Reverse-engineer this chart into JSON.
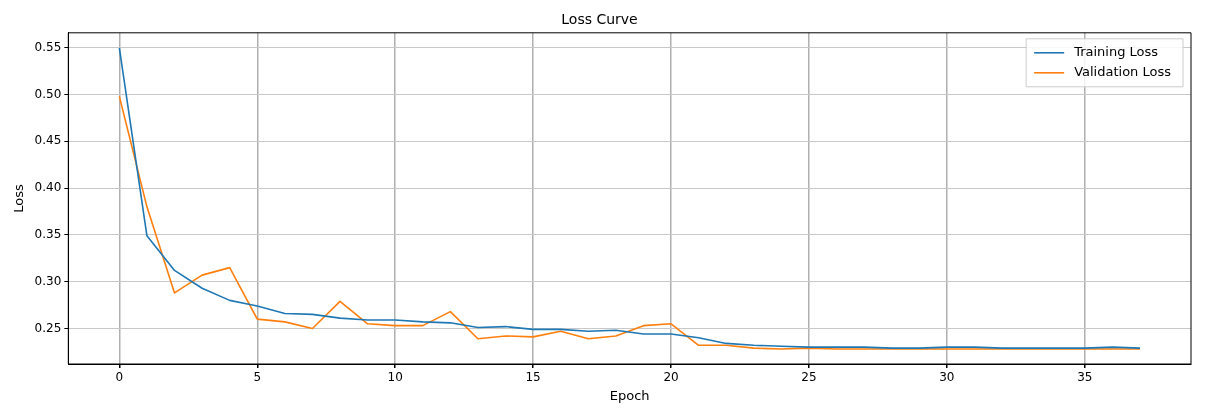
{
  "chart_data": {
    "type": "line",
    "title": "Loss Curve",
    "xlabel": "Epoch",
    "ylabel": "Loss",
    "x": [
      0,
      1,
      2,
      3,
      4,
      5,
      6,
      7,
      8,
      9,
      10,
      11,
      12,
      13,
      14,
      15,
      16,
      17,
      18,
      19,
      20,
      21,
      22,
      23,
      24,
      25,
      26,
      27,
      28,
      29,
      30,
      31,
      32,
      33,
      34,
      35,
      36,
      37
    ],
    "series": [
      {
        "name": "Training Loss",
        "color": "#1f77b4",
        "values": [
          0.55,
          0.349,
          0.312,
          0.293,
          0.28,
          0.274,
          0.266,
          0.265,
          0.261,
          0.259,
          0.259,
          0.257,
          0.256,
          0.251,
          0.252,
          0.249,
          0.249,
          0.247,
          0.248,
          0.244,
          0.244,
          0.24,
          0.234,
          0.232,
          0.231,
          0.23,
          0.23,
          0.23,
          0.229,
          0.229,
          0.23,
          0.23,
          0.229,
          0.229,
          0.229,
          0.229,
          0.23,
          0.229
        ]
      },
      {
        "name": "Validation Loss",
        "color": "#ff7f0e",
        "values": [
          0.498,
          0.38,
          0.288,
          0.307,
          0.315,
          0.26,
          0.257,
          0.25,
          0.279,
          0.255,
          0.253,
          0.253,
          0.268,
          0.239,
          0.242,
          0.241,
          0.247,
          0.239,
          0.242,
          0.253,
          0.255,
          0.232,
          0.232,
          0.229,
          0.228,
          0.229,
          0.228,
          0.228,
          0.228,
          0.228,
          0.228,
          0.228,
          0.228,
          0.228,
          0.228,
          0.228,
          0.228,
          0.228
        ]
      }
    ],
    "xlim": [
      -1.85,
      38.85
    ],
    "xticks": [
      0,
      5,
      10,
      15,
      20,
      25,
      30,
      35
    ],
    "ylim": [
      0.212,
      0.566
    ],
    "yticks": [
      {
        "value": 0.25,
        "label": "0.25"
      },
      {
        "value": 0.3,
        "label": "0.30"
      },
      {
        "value": 0.35,
        "label": "0.35"
      },
      {
        "value": 0.4,
        "label": "0.40"
      },
      {
        "value": 0.45,
        "label": "0.45"
      },
      {
        "value": 0.5,
        "label": "0.50"
      },
      {
        "value": 0.55,
        "label": "0.55"
      }
    ],
    "grid": true,
    "legend": "top right",
    "marker": "none",
    "line_style": "solid"
  }
}
